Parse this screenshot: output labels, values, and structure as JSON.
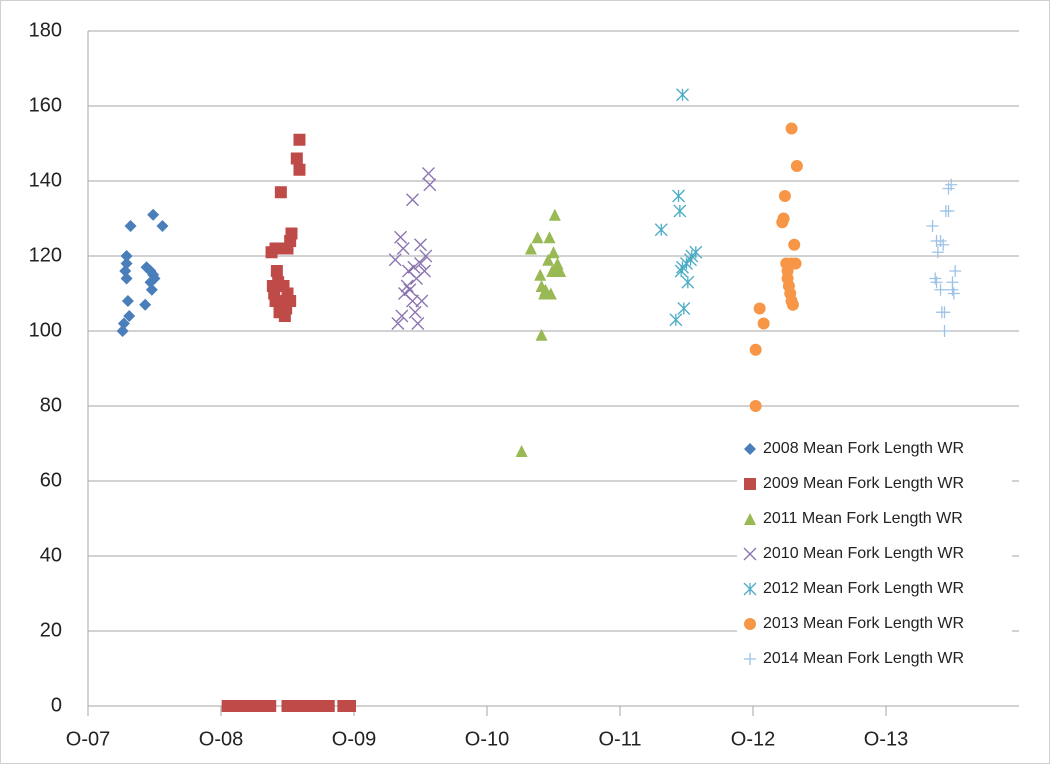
{
  "chart_data": {
    "type": "scatter",
    "xlim": [
      2007.75,
      2014.75
    ],
    "xticks": [
      {
        "value": 2007.75,
        "label": "O-07"
      },
      {
        "value": 2008.75,
        "label": "O-08"
      },
      {
        "value": 2009.75,
        "label": "O-09"
      },
      {
        "value": 2010.75,
        "label": "O-10"
      },
      {
        "value": 2011.75,
        "label": "O-11"
      },
      {
        "value": 2012.75,
        "label": "O-12"
      },
      {
        "value": 2013.75,
        "label": "O-13"
      }
    ],
    "ylim": [
      0,
      180
    ],
    "yticks": [
      0,
      20,
      40,
      60,
      80,
      100,
      120,
      140,
      160,
      180
    ],
    "grid": true,
    "legend": "lower right",
    "series": [
      {
        "name": "2008 Mean Fork Length WR",
        "color": "#4a7ebb",
        "marker": "diamond",
        "x": [
          2008.01,
          2008.02,
          2008.06,
          2008.05,
          2008.04,
          2008.04,
          2008.03,
          2008.04,
          2008.07,
          2008.18,
          2008.19,
          2008.22,
          2008.22,
          2008.23,
          2008.24,
          2008.25,
          2008.24,
          2008.31
        ],
        "values": [
          100,
          102,
          104,
          108,
          120,
          118,
          116,
          114,
          128,
          107,
          117,
          116,
          113,
          111,
          115,
          114,
          131,
          128
        ]
      },
      {
        "name": "2009 Mean Fork Length WR",
        "color": "#be4b48",
        "marker": "square",
        "x": [
          2009.13,
          2009.16,
          2009.2,
          2009.17,
          2009.18,
          2009.14,
          2009.15,
          2009.16,
          2009.19,
          2009.23,
          2009.22,
          2009.25,
          2009.27,
          2009.25,
          2009.27,
          2009.28,
          2009.32,
          2009.34,
          2009.34,
          2009.21,
          2009.24,
          2008.8,
          2008.86,
          2008.91,
          2008.96,
          2009.01,
          2009.07,
          2009.12,
          2009.25,
          2009.3,
          2009.35,
          2009.4,
          2009.46,
          2009.51,
          2009.56,
          2009.67,
          2009.72
        ],
        "values": [
          121,
          122,
          137,
          116,
          113,
          112,
          110,
          108,
          105,
          104,
          112,
          110,
          108,
          122,
          124,
          126,
          146,
          151,
          143,
          108,
          106,
          0,
          0,
          0,
          0,
          0,
          0,
          0,
          0,
          0,
          0,
          0,
          0,
          0,
          0,
          0,
          0
        ]
      },
      {
        "name": "2011 Mean Fork Length WR",
        "color": "#98b954",
        "marker": "triangle",
        "x": [
          2011.01,
          2011.08,
          2011.13,
          2011.16,
          2011.15,
          2011.16,
          2011.18,
          2011.19,
          2011.21,
          2011.22,
          2011.23,
          2011.24,
          2011.25,
          2011.26,
          2011.27,
          2011.28,
          2011.3
        ],
        "values": [
          68,
          122,
          125,
          99,
          115,
          112,
          110,
          111,
          119,
          125,
          110,
          116,
          121,
          131,
          117,
          118,
          116
        ]
      },
      {
        "name": "2010 Mean Fork Length WR",
        "color": "#8a73b0",
        "marker": "x",
        "x": [
          2010.06,
          2010.08,
          2010.1,
          2010.11,
          2010.12,
          2010.13,
          2010.15,
          2010.16,
          2010.17,
          2010.19,
          2010.19,
          2010.21,
          2010.22,
          2010.23,
          2010.25,
          2010.25,
          2010.26,
          2010.28,
          2010.29,
          2010.31,
          2010.32,
          2010.2
        ],
        "values": [
          119,
          102,
          125,
          104,
          122,
          110,
          112,
          116,
          111,
          135,
          108,
          105,
          114,
          102,
          118,
          123,
          108,
          116,
          120,
          142,
          139,
          117
        ]
      },
      {
        "name": "2012 Mean Fork Length WR",
        "color": "#4bacc6",
        "marker": "asterisk",
        "x": [
          2012.06,
          2012.17,
          2012.19,
          2012.2,
          2012.22,
          2012.21,
          2012.23,
          2012.25,
          2012.26,
          2012.28,
          2012.29,
          2012.32,
          2012.22
        ],
        "values": [
          127,
          103,
          136,
          132,
          163,
          116,
          106,
          118,
          113,
          119,
          120,
          121,
          117
        ]
      },
      {
        "name": "2013 Mean Fork Length WR",
        "color": "#f79646",
        "marker": "circle",
        "x": [
          2012.77,
          2012.77,
          2012.8,
          2012.83,
          2012.97,
          2012.98,
          2012.99,
          2013.0,
          2013.01,
          2013.02,
          2013.03,
          2013.04,
          2013.05,
          2013.04,
          2013.06,
          2013.07,
          2013.08,
          2013.04,
          2013.01
        ],
        "values": [
          95,
          80,
          106,
          102,
          129,
          130,
          136,
          118,
          114,
          112,
          110,
          108,
          107,
          118,
          123,
          118,
          144,
          154,
          116
        ]
      },
      {
        "name": "2014 Mean Fork Length WR",
        "color": "#9dc3e6",
        "marker": "plus",
        "x": [
          2014.1,
          2014.13,
          2014.14,
          2014.16,
          2014.18,
          2014.12,
          2014.13,
          2014.16,
          2014.17,
          2014.19,
          2014.19,
          2014.2,
          2014.22,
          2014.22,
          2014.24,
          2014.25,
          2014.27,
          2014.25,
          2014.26
        ],
        "values": [
          128,
          124,
          121,
          124,
          123,
          114,
          113,
          111,
          105,
          100,
          105,
          132,
          132,
          138,
          139,
          111,
          116,
          113,
          110
        ]
      }
    ]
  }
}
